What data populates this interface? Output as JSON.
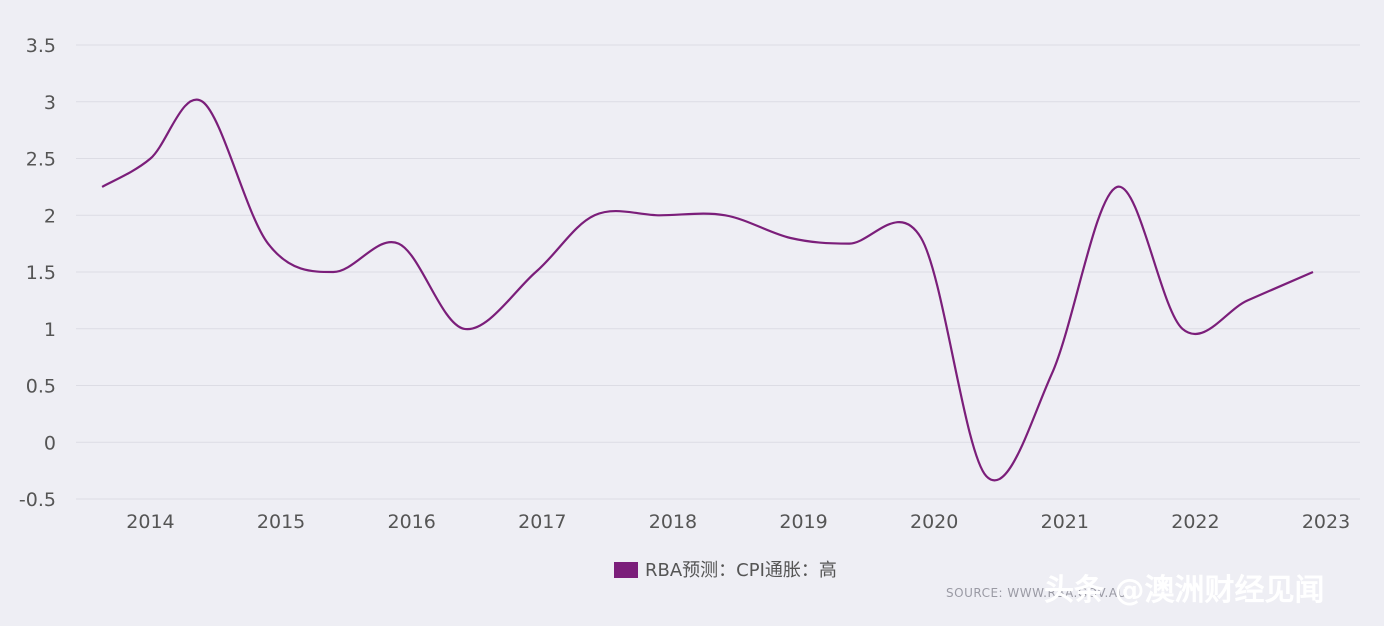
{
  "colors": {
    "background": "#eeeef4",
    "line": "#7b1e7a",
    "grid": "#dcdce4",
    "tick": "#555555"
  },
  "chart_data": {
    "type": "line",
    "title": "",
    "xlabel": "",
    "ylabel": "",
    "x_tick_labels": [
      "2014",
      "2015",
      "2016",
      "2017",
      "2018",
      "2019",
      "2020",
      "2021",
      "2022",
      "2023"
    ],
    "y_tick_labels": [
      "-0.5",
      "0",
      "0.5",
      "1",
      "1.5",
      "2",
      "2.5",
      "3",
      "3.5"
    ],
    "ylim": [
      -0.5,
      3.5
    ],
    "xlim": [
      2013.43,
      2023.26
    ],
    "grid": "horizontal",
    "legend_position": "bottom-center",
    "series": [
      {
        "name": "RBA预测：CPI通胀：高",
        "color": "#7b1e7a",
        "x": [
          2013.63,
          2014.0,
          2014.4,
          2014.9,
          2015.4,
          2015.9,
          2016.4,
          2016.95,
          2017.4,
          2017.9,
          2018.4,
          2018.9,
          2019.35,
          2019.9,
          2020.4,
          2020.9,
          2021.4,
          2021.9,
          2022.4,
          2022.9
        ],
        "y": [
          2.25,
          2.5,
          3.0,
          1.75,
          1.5,
          1.75,
          1.0,
          1.5,
          2.0,
          2.0,
          2.0,
          1.8,
          1.75,
          1.8,
          -0.3,
          0.6,
          2.25,
          1.0,
          1.25,
          1.5
        ]
      }
    ]
  },
  "legend": {
    "label": "RBA预测：CPI通胀：高"
  },
  "source": {
    "text": "SOURCE: WWW.RBA.GOV.AU"
  },
  "watermark": {
    "text": "头条 @澳洲财经见闻"
  }
}
